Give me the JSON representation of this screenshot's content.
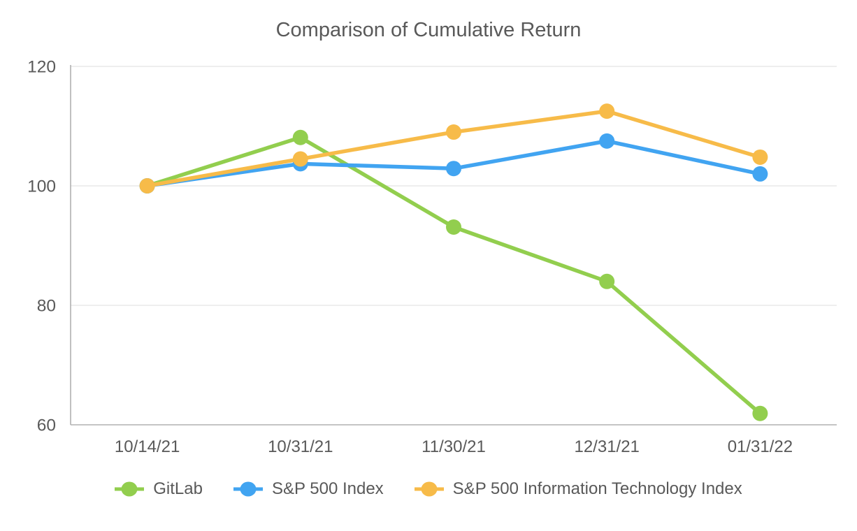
{
  "chart_data": {
    "type": "line",
    "title": "Comparison of Cumulative Return",
    "xlabel": "",
    "ylabel": "",
    "categories": [
      "10/14/21",
      "10/31/21",
      "11/30/21",
      "12/31/21",
      "01/31/22"
    ],
    "series": [
      {
        "name": "GitLab",
        "color": "#92CE4E",
        "values": [
          100,
          108.1,
          93.1,
          84.0,
          61.9
        ]
      },
      {
        "name": "S&P 500 Index",
        "color": "#41A4F1",
        "values": [
          100,
          103.7,
          102.9,
          107.5,
          102.0
        ]
      },
      {
        "name": "S&P 500 Information Technology Index",
        "color": "#F7BB49",
        "values": [
          100,
          104.5,
          109.0,
          112.5,
          104.8
        ]
      }
    ],
    "ylim": [
      60,
      120
    ],
    "yticks": [
      60,
      80,
      100,
      120
    ],
    "grid": true,
    "marker": "circle",
    "legend_position": "bottom"
  },
  "style": {
    "text_color": "#595959",
    "gridline_color": "#E8E8E8",
    "axis_color": "#B0B0B0",
    "background": "#FFFFFF"
  }
}
